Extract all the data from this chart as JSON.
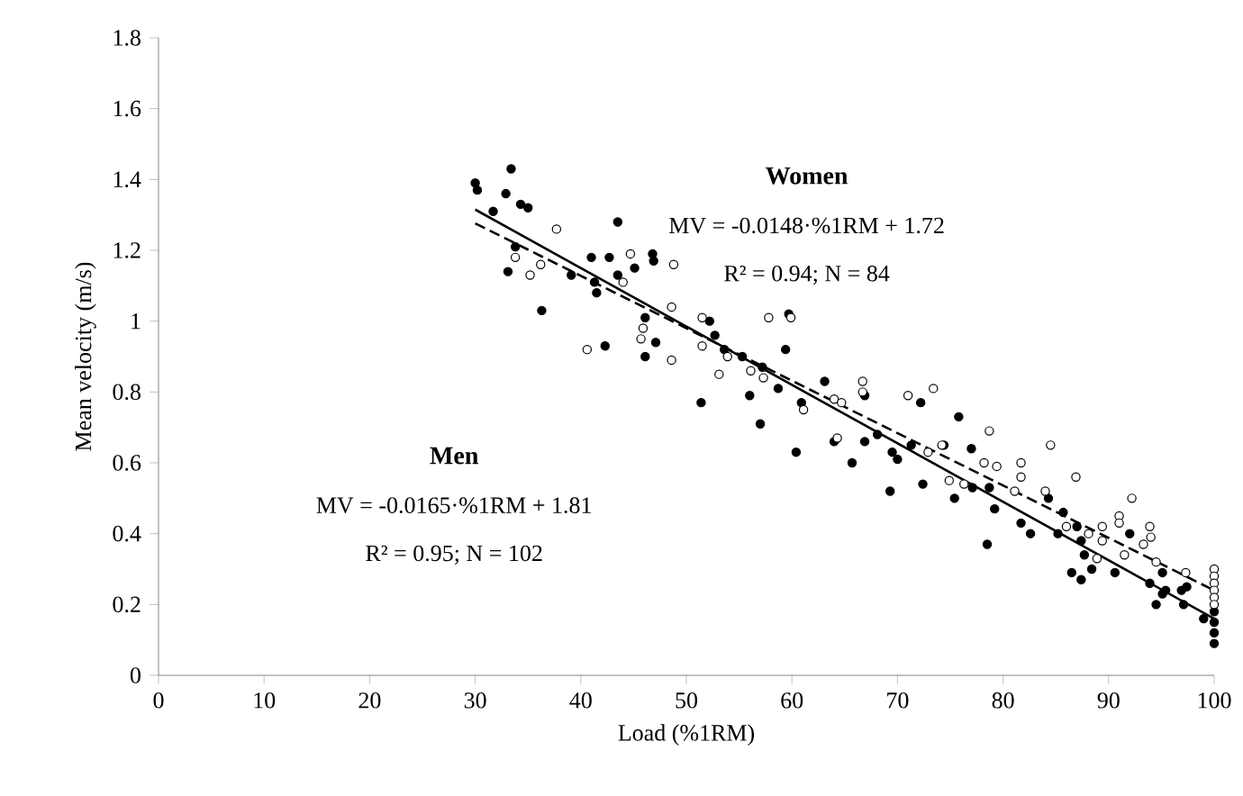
{
  "chart_data": {
    "type": "scatter",
    "xlabel": "Load (%1RM)",
    "ylabel": "Mean velocity (m/s)",
    "xlim": [
      0,
      100
    ],
    "ylim": [
      0,
      1.8
    ],
    "xticks": [
      0,
      10,
      20,
      30,
      40,
      50,
      60,
      70,
      80,
      90,
      100
    ],
    "yticks": [
      0,
      0.2,
      0.4,
      0.6,
      0.8,
      1,
      1.2,
      1.4,
      1.6,
      1.8
    ],
    "grid": false,
    "marker": "circle",
    "annotations": [
      "Women",
      "MV = -0.0148·%1RM + 1.72",
      "R² = 0.94; N = 84",
      "Men",
      "MV = -0.0165·%1RM  + 1.81",
      "R² = 0.95; N = 102"
    ],
    "series": [
      {
        "color": "#000000",
        "x": [
          30.0,
          30.2,
          33.4,
          32.9,
          34.3,
          35.0,
          31.7,
          33.8,
          33.1,
          36.3,
          43.5,
          41.0,
          42.7,
          39.1,
          41.3,
          41.5,
          43.5,
          45.1,
          46.8,
          46.9,
          42.3,
          46.1,
          47.1,
          46.1,
          52.2,
          52.7,
          53.6,
          55.3,
          51.4,
          56.0,
          59.7,
          59.4,
          57.2,
          57.0,
          58.7,
          60.4,
          63.1,
          60.9,
          66.9,
          64.0,
          65.7,
          66.9,
          68.1,
          69.5,
          70.0,
          69.3,
          72.2,
          72.4,
          71.3,
          74.4,
          75.8,
          77.0,
          75.4,
          77.1,
          78.5,
          78.7,
          79.2,
          81.7,
          82.6,
          84.3,
          85.7,
          85.2,
          87.0,
          87.4,
          87.7,
          86.5,
          87.4,
          88.4,
          90.6,
          92.0,
          93.9,
          94.5,
          95.1,
          95.4,
          95.1,
          96.9,
          97.1,
          97.4,
          99.0,
          100,
          100,
          100,
          100
        ],
        "values": [
          1.39,
          1.37,
          1.43,
          1.36,
          1.33,
          1.32,
          1.31,
          1.21,
          1.14,
          1.03,
          1.28,
          1.18,
          1.18,
          1.13,
          1.11,
          1.08,
          1.13,
          1.15,
          1.19,
          1.17,
          0.93,
          1.01,
          0.94,
          0.9,
          1.0,
          0.96,
          0.92,
          0.9,
          0.77,
          0.79,
          1.02,
          0.92,
          0.87,
          0.71,
          0.81,
          0.63,
          0.83,
          0.77,
          0.79,
          0.66,
          0.6,
          0.66,
          0.68,
          0.63,
          0.61,
          0.52,
          0.77,
          0.54,
          0.65,
          0.65,
          0.73,
          0.64,
          0.5,
          0.53,
          0.37,
          0.53,
          0.47,
          0.43,
          0.4,
          0.5,
          0.46,
          0.4,
          0.42,
          0.38,
          0.34,
          0.29,
          0.27,
          0.3,
          0.29,
          0.4,
          0.26,
          0.2,
          0.23,
          0.24,
          0.29,
          0.24,
          0.2,
          0.25,
          0.16,
          0.18,
          0.15,
          0.12,
          0.09
        ]
      },
      {
        "color": "#ffffff",
        "x": [
          37.7,
          33.8,
          35.2,
          36.2,
          44.7,
          48.8,
          44.0,
          40.6,
          45.7,
          45.9,
          48.6,
          48.6,
          51.5,
          51.5,
          53.9,
          53.1,
          56.1,
          57.8,
          59.9,
          57.3,
          61.1,
          64.0,
          64.7,
          66.7,
          66.7,
          64.3,
          71.0,
          73.4,
          72.9,
          74.2,
          78.2,
          74.9,
          76.3,
          78.7,
          79.4,
          81.1,
          81.7,
          81.7,
          84.5,
          84.0,
          86.9,
          86.0,
          88.1,
          89.4,
          89.4,
          88.9,
          91.0,
          91.0,
          91.5,
          92.2,
          93.9,
          94.0,
          93.3,
          94.5,
          97.3,
          100,
          100,
          100,
          100,
          100,
          100
        ],
        "values": [
          1.26,
          1.18,
          1.13,
          1.16,
          1.19,
          1.16,
          1.11,
          0.92,
          0.95,
          0.98,
          1.04,
          0.89,
          1.01,
          0.93,
          0.9,
          0.85,
          0.86,
          1.01,
          1.01,
          0.84,
          0.75,
          0.78,
          0.77,
          0.83,
          0.8,
          0.67,
          0.79,
          0.81,
          0.63,
          0.65,
          0.6,
          0.55,
          0.54,
          0.69,
          0.59,
          0.52,
          0.6,
          0.56,
          0.65,
          0.52,
          0.56,
          0.42,
          0.4,
          0.42,
          0.38,
          0.33,
          0.45,
          0.43,
          0.34,
          0.5,
          0.42,
          0.39,
          0.37,
          0.32,
          0.29,
          0.3,
          0.28,
          0.26,
          0.24,
          0.22,
          0.2
        ]
      },
      {
        "type": "line",
        "marker": "none",
        "color": "#000000",
        "line_style": "solid",
        "x": [
          30,
          100
        ],
        "values": [
          1.315,
          0.16
        ]
      },
      {
        "type": "line",
        "marker": "none",
        "color": "#000000",
        "line_style": "dashed",
        "x": [
          30,
          100
        ],
        "values": [
          1.276,
          0.24
        ]
      }
    ]
  }
}
